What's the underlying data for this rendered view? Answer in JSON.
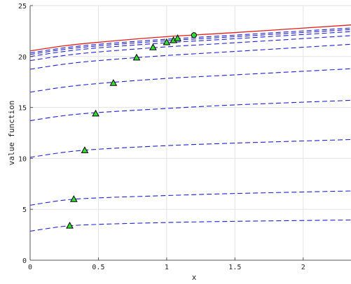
{
  "chart_data": {
    "type": "line",
    "title": "",
    "xlabel": "x",
    "ylabel": "value function",
    "xlim": [
      0,
      2.35
    ],
    "ylim": [
      0,
      25
    ],
    "xticks": [
      0,
      0.5,
      1,
      1.5,
      2
    ],
    "xtick_labels": [
      "0",
      "0.5",
      "1",
      "1.5",
      "2"
    ],
    "yticks": [
      0,
      5,
      10,
      15,
      20,
      25
    ],
    "ytick_labels": [
      "0",
      "5",
      "10",
      "15",
      "20",
      "25"
    ],
    "grid": true,
    "legend": "none",
    "colors": {
      "dashed": "#1f1fd6",
      "solid": "#e0201b",
      "marker_fill": "#33dd33",
      "marker_edge": "#000000"
    },
    "series": [
      {
        "style": "dashed",
        "x": [
          0,
          0.25,
          0.5,
          1.0,
          1.5,
          2.35
        ],
        "y": [
          2.85,
          3.33,
          3.52,
          3.7,
          3.82,
          3.95
        ]
      },
      {
        "style": "dashed",
        "x": [
          0,
          0.25,
          0.5,
          1.0,
          1.5,
          2.35
        ],
        "y": [
          5.4,
          5.9,
          6.12,
          6.35,
          6.55,
          6.8
        ]
      },
      {
        "style": "dashed",
        "x": [
          0,
          0.25,
          0.5,
          1.0,
          1.5,
          2.35
        ],
        "y": [
          10.1,
          10.6,
          10.9,
          11.25,
          11.5,
          11.85
        ]
      },
      {
        "style": "dashed",
        "x": [
          0,
          0.25,
          0.5,
          1.0,
          1.5,
          2.35
        ],
        "y": [
          13.7,
          14.2,
          14.5,
          14.9,
          15.25,
          15.7
        ]
      },
      {
        "style": "dashed",
        "x": [
          0,
          0.25,
          0.5,
          1.0,
          1.5,
          2.35
        ],
        "y": [
          16.5,
          17.0,
          17.35,
          17.85,
          18.2,
          18.8
        ]
      },
      {
        "style": "dashed",
        "x": [
          0,
          0.25,
          0.5,
          1.0,
          1.5,
          2.35
        ],
        "y": [
          18.75,
          19.25,
          19.6,
          20.1,
          20.5,
          21.2
        ]
      },
      {
        "style": "dashed",
        "x": [
          0,
          0.25,
          0.5,
          1.0,
          1.5,
          2.35
        ],
        "y": [
          19.6,
          20.1,
          20.45,
          20.95,
          21.35,
          22.05
        ]
      },
      {
        "style": "dashed",
        "x": [
          0,
          0.25,
          0.5,
          1.0,
          1.5,
          2.35
        ],
        "y": [
          20.0,
          20.5,
          20.85,
          21.35,
          21.75,
          22.45
        ]
      },
      {
        "style": "dashed",
        "x": [
          0,
          0.25,
          0.5,
          1.0,
          1.5,
          2.35
        ],
        "y": [
          20.2,
          20.7,
          21.05,
          21.55,
          21.95,
          22.65
        ]
      },
      {
        "style": "dashed",
        "x": [
          0,
          0.25,
          0.5,
          1.0,
          1.5,
          2.35
        ],
        "y": [
          20.35,
          20.85,
          21.2,
          21.7,
          22.1,
          22.8
        ]
      },
      {
        "style": "solid",
        "x": [
          0,
          0.25,
          0.5,
          1.0,
          1.5,
          2.35
        ],
        "y": [
          20.55,
          21.05,
          21.4,
          21.95,
          22.35,
          23.1
        ]
      }
    ],
    "markers": [
      {
        "shape": "triangle",
        "x": 0.29,
        "y": 3.4
      },
      {
        "shape": "triangle",
        "x": 0.32,
        "y": 6.0
      },
      {
        "shape": "triangle",
        "x": 0.4,
        "y": 10.8
      },
      {
        "shape": "triangle",
        "x": 0.48,
        "y": 14.4
      },
      {
        "shape": "triangle",
        "x": 0.61,
        "y": 17.4
      },
      {
        "shape": "triangle",
        "x": 0.78,
        "y": 19.9
      },
      {
        "shape": "triangle",
        "x": 0.9,
        "y": 20.9
      },
      {
        "shape": "triangle",
        "x": 1.0,
        "y": 21.4
      },
      {
        "shape": "triangle",
        "x": 1.05,
        "y": 21.6
      },
      {
        "shape": "triangle",
        "x": 1.08,
        "y": 21.8
      },
      {
        "shape": "circle",
        "x": 1.2,
        "y": 22.1
      }
    ]
  }
}
